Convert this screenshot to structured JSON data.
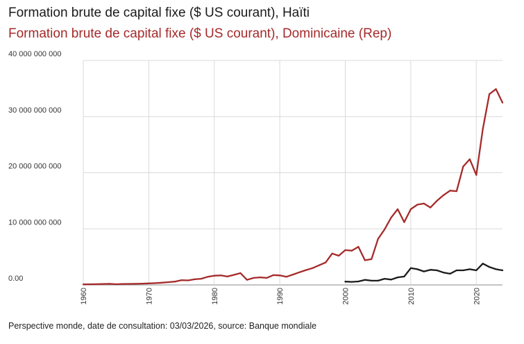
{
  "chart_data": {
    "type": "line",
    "title": "Formation brute de capital fixe ($ US courant), Haïti",
    "subtitle": "Formation brute de capital fixe ($ US courant), Dominicaine (Rep)",
    "xlabel": "",
    "ylabel": "",
    "xlim": [
      1960,
      2024
    ],
    "ylim": [
      0,
      40000000000
    ],
    "yticks": [
      0,
      10000000000,
      20000000000,
      30000000000,
      40000000000
    ],
    "ytick_labels": [
      "0.00",
      "10 000 000 000",
      "20 000 000 000",
      "30 000 000 000",
      "40 000 000 000"
    ],
    "xticks": [
      1960,
      1970,
      1980,
      1990,
      2000,
      2010,
      2020
    ],
    "xtick_labels": [
      "1960",
      "1970",
      "1980",
      "1990",
      "2000",
      "2010",
      "2020"
    ],
    "grid": true,
    "series": [
      {
        "name": "Dominicaine (Rep)",
        "color": "#a52a2a",
        "x": [
          1960,
          1961,
          1962,
          1963,
          1964,
          1965,
          1966,
          1967,
          1968,
          1969,
          1970,
          1971,
          1972,
          1973,
          1974,
          1975,
          1976,
          1977,
          1978,
          1979,
          1980,
          1981,
          1982,
          1983,
          1984,
          1985,
          1986,
          1987,
          1988,
          1989,
          1990,
          1991,
          1992,
          1993,
          1994,
          1995,
          1996,
          1997,
          1998,
          1999,
          2000,
          2001,
          2002,
          2003,
          2004,
          2005,
          2006,
          2007,
          2008,
          2009,
          2010,
          2011,
          2012,
          2013,
          2014,
          2015,
          2016,
          2017,
          2018,
          2019,
          2020,
          2021,
          2022,
          2023,
          2024
        ],
        "values": [
          100000000,
          120000000,
          140000000,
          170000000,
          200000000,
          130000000,
          170000000,
          180000000,
          200000000,
          230000000,
          270000000,
          320000000,
          400000000,
          500000000,
          600000000,
          850000000,
          800000000,
          1000000000,
          1100000000,
          1450000000,
          1650000000,
          1700000000,
          1500000000,
          1800000000,
          2100000000,
          900000000,
          1250000000,
          1350000000,
          1250000000,
          1750000000,
          1700000000,
          1450000000,
          1850000000,
          2250000000,
          2650000000,
          3000000000,
          3500000000,
          4000000000,
          5600000000,
          5200000000,
          6200000000,
          6100000000,
          6800000000,
          4400000000,
          4600000000,
          8200000000,
          9900000000,
          12000000000,
          13500000000,
          11200000000,
          13500000000,
          14300000000,
          14500000000,
          13800000000,
          15000000000,
          16000000000,
          16800000000,
          16700000000,
          21100000000,
          22400000000,
          19600000000,
          27800000000,
          34000000000,
          34900000000,
          32500000000
        ]
      },
      {
        "name": "Haïti",
        "color": "#1a1a1a",
        "x": [
          2000,
          2001,
          2002,
          2003,
          2004,
          2005,
          2006,
          2007,
          2008,
          2009,
          2010,
          2011,
          2012,
          2013,
          2014,
          2015,
          2016,
          2017,
          2018,
          2019,
          2020,
          2021,
          2022,
          2023,
          2024
        ],
        "values": [
          600000000,
          550000000,
          620000000,
          900000000,
          750000000,
          750000000,
          1100000000,
          950000000,
          1350000000,
          1500000000,
          3000000000,
          2800000000,
          2400000000,
          2700000000,
          2600000000,
          2200000000,
          2000000000,
          2600000000,
          2600000000,
          2800000000,
          2600000000,
          3800000000,
          3200000000,
          2800000000,
          2600000000
        ]
      }
    ]
  },
  "footer": "Perspective monde, date de consultation: 03/03/2026, source: Banque mondiale"
}
